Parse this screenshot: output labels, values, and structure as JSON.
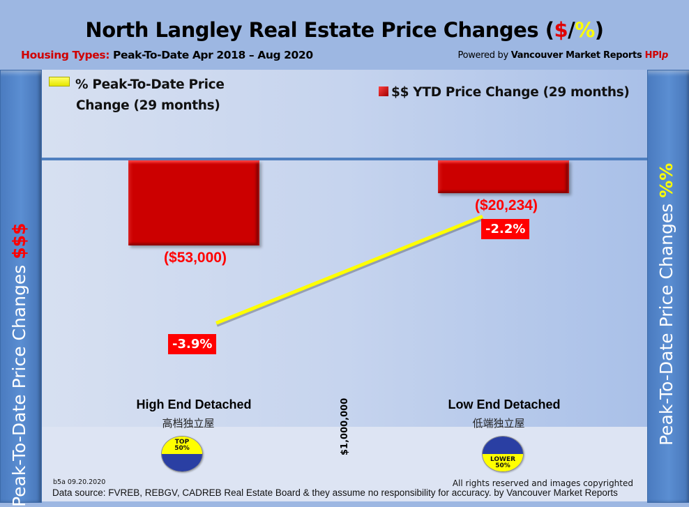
{
  "header": {
    "title_main": "North Langley Real Estate Price Changes (",
    "title_dollar": "$",
    "title_slash": "/",
    "title_pct": "%",
    "title_close": ")",
    "subtitle_label": "Housing Types:",
    "subtitle_text": " Peak-To-Date Apr 2018 – Aug 2020",
    "powered_prefix": "Powered by ",
    "powered_brand": "Vancouver Market Reports ",
    "powered_hpi": "HPI",
    "powered_p": "p"
  },
  "side_panels": {
    "left_text": "Peak-To-Date Price Changes ",
    "left_accent": "$$$",
    "right_text": "Peak-To-Date  Price  Changes  ",
    "right_accent": "%%"
  },
  "legend": {
    "yellow_line1": "% Peak-To-Date Price",
    "yellow_line2": "Change (29 months)",
    "red": "$$ YTD Price Change (29 months)"
  },
  "chart_data": {
    "type": "bar",
    "title": "North Langley Real Estate Price Changes ($/%)",
    "categories": [
      "High End Detached",
      "Low End Detached"
    ],
    "categories_zh": [
      "高档独立屋",
      "低端独立屋"
    ],
    "series": [
      {
        "name": "$$ YTD Price Change (29 months)",
        "type": "bar",
        "values": [
          -53000,
          -20234
        ],
        "labels": [
          "($53,000)",
          "($20,234)"
        ],
        "color": "#cc0000"
      },
      {
        "name": "% Peak-To-Date Price Change (29 months)",
        "type": "line",
        "values": [
          -3.9,
          -2.2
        ],
        "labels": [
          "-3.9%",
          "-2.2%"
        ],
        "color": "#ffff00"
      }
    ],
    "ylim_bars": [
      -140000,
      0
    ],
    "ylim_pct": [
      -5,
      0
    ],
    "threshold_label": "$1,000,000",
    "badges": [
      "TOP\n50%",
      "LOWER\n50%"
    ],
    "legend_placement": "top"
  },
  "badges": {
    "top_line1": "TOP",
    "top_line2": "50%",
    "lower_line1": "LOWER",
    "lower_line2": "50%"
  },
  "footer": {
    "code": "b5a 09.20.2020",
    "rights": "All rights reserved and  images copyrighted",
    "source": "Data source: FVREB, REBGV, CADREB Real Estate Board & they assume no responsibility for accuracy. by Vancouver Market Reports"
  },
  "colors": {
    "background": "#9db7e2",
    "bar": "#cc0000",
    "line": "#ffff00",
    "label_red": "#ff0000",
    "panel": "#5b8ed2"
  }
}
